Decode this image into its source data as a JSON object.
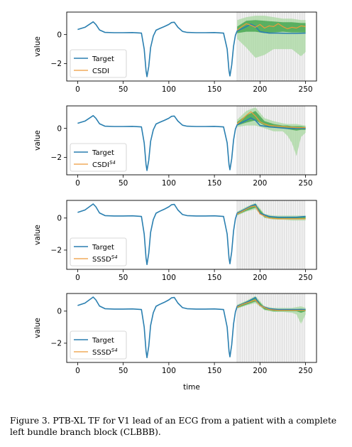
{
  "caption": "Figure 3.  PTB-XL TF for V1 lead of an ECG from a patient with a complete left bundle branch block (CLBBB).",
  "colors": {
    "target": "#2a7fb0",
    "prediction": "#ee9a3a",
    "band_light": "#a8d8a0",
    "band_dark": "#3aa045",
    "masked": "#d9d9d9"
  },
  "chart_data": [
    {
      "type": "line",
      "xlabel": "",
      "ylabel": "value",
      "xlim": [
        -12,
        262
      ],
      "ylim": [
        -3.2,
        1.55
      ],
      "xticks": [
        0,
        50,
        100,
        150,
        200,
        250
      ],
      "yticks": [
        0,
        -2
      ],
      "forecast_start": 175,
      "legend": {
        "placement": "lower-left",
        "entries": [
          {
            "label": "Target",
            "base": "Target",
            "sup": "",
            "series": "target"
          },
          {
            "label": "CSDI",
            "base": "CSDI",
            "sup": "",
            "series": "prediction"
          }
        ]
      },
      "series": [
        {
          "name": "Target",
          "x": [
            0,
            8,
            14,
            17,
            20,
            24,
            30,
            40,
            50,
            60,
            70,
            73,
            75,
            76,
            78,
            80,
            83,
            86,
            90,
            95,
            100,
            103,
            106,
            110,
            115,
            120,
            130,
            140,
            150,
            160,
            164,
            166,
            167,
            169,
            171,
            173,
            175,
            180,
            185,
            190,
            195,
            200,
            210,
            220,
            230,
            240,
            250
          ],
          "y": [
            0.35,
            0.5,
            0.75,
            0.88,
            0.7,
            0.32,
            0.15,
            0.13,
            0.13,
            0.14,
            0.1,
            -1.0,
            -2.5,
            -2.9,
            -2.2,
            -0.9,
            -0.1,
            0.3,
            0.42,
            0.55,
            0.7,
            0.83,
            0.85,
            0.5,
            0.22,
            0.15,
            0.13,
            0.13,
            0.14,
            0.1,
            -1.0,
            -2.5,
            -2.85,
            -2.1,
            -0.8,
            -0.05,
            0.25,
            0.4,
            0.55,
            0.72,
            0.55,
            0.2,
            0.1,
            0.1,
            0.08,
            0.08,
            0.1
          ]
        },
        {
          "name": "CSDI",
          "x": [
            175,
            180,
            185,
            190,
            195,
            200,
            205,
            210,
            215,
            220,
            225,
            230,
            235,
            240,
            245,
            250
          ],
          "y": [
            0.3,
            0.55,
            0.75,
            0.65,
            0.5,
            0.7,
            0.45,
            0.6,
            0.55,
            0.75,
            0.55,
            0.4,
            0.5,
            0.45,
            0.6,
            0.55
          ]
        }
      ],
      "band": {
        "x": [
          175,
          185,
          195,
          205,
          215,
          225,
          235,
          245,
          250
        ],
        "outer_low": [
          -0.3,
          -0.9,
          -1.6,
          -1.4,
          -1.0,
          -1.0,
          -1.0,
          -1.5,
          -1.2
        ],
        "outer_high": [
          1.0,
          1.2,
          1.3,
          1.3,
          1.2,
          1.1,
          1.1,
          1.0,
          1.0
        ],
        "inner_low": [
          0.1,
          0.2,
          0.2,
          0.1,
          0.15,
          0.2,
          0.15,
          0.15,
          0.15
        ],
        "inner_high": [
          0.55,
          0.95,
          1.0,
          0.95,
          0.9,
          0.85,
          0.85,
          0.8,
          0.8
        ]
      }
    },
    {
      "type": "line",
      "xlabel": "",
      "ylabel": "value",
      "xlim": [
        -12,
        262
      ],
      "ylim": [
        -3.2,
        1.55
      ],
      "xticks": [
        0,
        50,
        100,
        150,
        200,
        250
      ],
      "yticks": [
        0,
        -2
      ],
      "forecast_start": 175,
      "legend": {
        "placement": "lower-left",
        "entries": [
          {
            "label": "Target",
            "base": "Target",
            "sup": "",
            "series": "target"
          },
          {
            "label": "CSDI S4",
            "base": "CSDI",
            "sup": "S4",
            "series": "prediction"
          }
        ]
      },
      "series": [
        {
          "name": "Target",
          "x": [
            0,
            8,
            14,
            17,
            20,
            24,
            30,
            40,
            50,
            60,
            70,
            73,
            75,
            76,
            78,
            80,
            83,
            86,
            90,
            95,
            100,
            103,
            106,
            110,
            115,
            120,
            130,
            140,
            150,
            160,
            164,
            166,
            167,
            169,
            171,
            173,
            175,
            180,
            185,
            190,
            195,
            200,
            210,
            220,
            230,
            240,
            250
          ],
          "y": [
            0.35,
            0.5,
            0.75,
            0.88,
            0.7,
            0.32,
            0.15,
            0.13,
            0.13,
            0.14,
            0.1,
            -1.0,
            -2.5,
            -2.9,
            -2.2,
            -0.9,
            -0.1,
            0.3,
            0.42,
            0.55,
            0.7,
            0.83,
            0.85,
            0.5,
            0.22,
            0.15,
            0.13,
            0.13,
            0.14,
            0.1,
            -1.0,
            -2.5,
            -2.85,
            -2.1,
            -0.8,
            -0.05,
            0.25,
            0.4,
            0.55,
            0.72,
            0.55,
            0.2,
            0.1,
            0.05,
            0.0,
            0.0,
            0.0
          ]
        },
        {
          "name": "CSDI S4",
          "x": [
            175,
            180,
            185,
            190,
            195,
            200,
            205,
            210,
            220,
            230,
            240,
            250
          ],
          "y": [
            0.3,
            0.6,
            0.9,
            1.15,
            0.85,
            0.45,
            0.3,
            0.2,
            0.15,
            0.1,
            0.05,
            0.05
          ]
        }
      ],
      "band": {
        "x": [
          175,
          185,
          195,
          205,
          215,
          225,
          230,
          235,
          240,
          245,
          250
        ],
        "outer_low": [
          0.1,
          0.2,
          0.2,
          0.0,
          -0.2,
          -0.2,
          -0.5,
          -1.0,
          -1.9,
          -0.6,
          -0.3
        ],
        "outer_high": [
          0.6,
          1.2,
          1.45,
          0.7,
          0.5,
          0.35,
          0.3,
          0.3,
          0.3,
          0.25,
          0.2
        ],
        "inner_low": [
          0.2,
          0.4,
          0.55,
          0.2,
          0.05,
          0.0,
          -0.05,
          -0.1,
          -0.15,
          -0.1,
          -0.1
        ],
        "inner_high": [
          0.45,
          0.9,
          1.2,
          0.5,
          0.3,
          0.2,
          0.2,
          0.15,
          0.15,
          0.15,
          0.1
        ]
      }
    },
    {
      "type": "line",
      "xlabel": "",
      "ylabel": "value",
      "xlim": [
        -12,
        262
      ],
      "ylim": [
        -3.2,
        1.1
      ],
      "xticks": [
        0,
        50,
        100,
        150,
        200,
        250
      ],
      "yticks": [
        0,
        -2
      ],
      "forecast_start": 175,
      "legend": {
        "placement": "lower-left",
        "entries": [
          {
            "label": "Target",
            "base": "Target",
            "sup": "",
            "series": "target"
          },
          {
            "label": "SSSD S4",
            "base": "SSSD",
            "sup": "S4",
            "series": "prediction"
          }
        ]
      },
      "series": [
        {
          "name": "Target",
          "x": [
            0,
            8,
            14,
            17,
            20,
            24,
            30,
            40,
            50,
            60,
            70,
            73,
            75,
            76,
            78,
            80,
            83,
            86,
            90,
            95,
            100,
            103,
            106,
            110,
            115,
            120,
            130,
            140,
            150,
            160,
            164,
            166,
            167,
            169,
            171,
            173,
            175,
            180,
            185,
            190,
            195,
            200,
            210,
            220,
            230,
            240,
            250
          ],
          "y": [
            0.35,
            0.5,
            0.75,
            0.88,
            0.7,
            0.32,
            0.15,
            0.13,
            0.13,
            0.14,
            0.1,
            -1.0,
            -2.5,
            -2.9,
            -2.2,
            -0.9,
            -0.1,
            0.3,
            0.42,
            0.55,
            0.7,
            0.83,
            0.85,
            0.5,
            0.22,
            0.15,
            0.13,
            0.13,
            0.14,
            0.1,
            -1.0,
            -2.5,
            -2.85,
            -2.1,
            -0.8,
            -0.05,
            0.3,
            0.45,
            0.6,
            0.75,
            0.85,
            0.3,
            0.1,
            0.05,
            0.05,
            0.05,
            0.1
          ]
        },
        {
          "name": "SSSD S4",
          "x": [
            175,
            180,
            185,
            190,
            195,
            200,
            210,
            220,
            230,
            240,
            250
          ],
          "y": [
            0.25,
            0.4,
            0.55,
            0.7,
            0.75,
            0.25,
            0.0,
            -0.05,
            -0.05,
            -0.05,
            -0.05
          ]
        }
      ],
      "band": {
        "x": [
          175,
          185,
          195,
          205,
          215,
          225,
          235,
          245,
          250
        ],
        "outer_low": [
          0.15,
          0.4,
          0.55,
          0.0,
          -0.1,
          -0.1,
          -0.15,
          -0.15,
          -0.15
        ],
        "outer_high": [
          0.4,
          0.7,
          0.95,
          0.25,
          0.15,
          0.15,
          0.15,
          0.15,
          0.15
        ],
        "inner_low": [
          0.2,
          0.45,
          0.65,
          0.05,
          -0.05,
          -0.05,
          -0.05,
          -0.05,
          -0.05
        ],
        "inner_high": [
          0.35,
          0.62,
          0.85,
          0.18,
          0.08,
          0.08,
          0.08,
          0.08,
          0.08
        ]
      }
    },
    {
      "type": "line",
      "xlabel": "time",
      "ylabel": "value",
      "xlim": [
        -12,
        262
      ],
      "ylim": [
        -3.2,
        1.1
      ],
      "xticks": [
        0,
        50,
        100,
        150,
        200,
        250
      ],
      "yticks": [
        0,
        -2
      ],
      "forecast_start": 175,
      "legend": {
        "placement": "lower-left",
        "entries": [
          {
            "label": "Target",
            "base": "Target",
            "sup": "",
            "series": "target"
          },
          {
            "label": "SSSD S4",
            "base": "SSSD",
            "sup": "S4",
            "series": "prediction"
          }
        ]
      },
      "series": [
        {
          "name": "Target",
          "x": [
            0,
            8,
            14,
            17,
            20,
            24,
            30,
            40,
            50,
            60,
            70,
            73,
            75,
            76,
            78,
            80,
            83,
            86,
            90,
            95,
            100,
            103,
            106,
            110,
            115,
            120,
            130,
            140,
            150,
            160,
            164,
            166,
            167,
            169,
            171,
            173,
            175,
            180,
            185,
            190,
            195,
            200,
            210,
            220,
            230,
            240,
            250
          ],
          "y": [
            0.35,
            0.5,
            0.75,
            0.88,
            0.7,
            0.32,
            0.15,
            0.13,
            0.13,
            0.14,
            0.1,
            -1.0,
            -2.5,
            -2.9,
            -2.2,
            -0.9,
            -0.1,
            0.3,
            0.42,
            0.55,
            0.7,
            0.83,
            0.85,
            0.5,
            0.22,
            0.15,
            0.13,
            0.13,
            0.14,
            0.1,
            -1.0,
            -2.5,
            -2.85,
            -2.1,
            -0.8,
            -0.05,
            0.3,
            0.42,
            0.55,
            0.7,
            0.85,
            0.35,
            0.15,
            0.1,
            0.1,
            0.1,
            0.1
          ]
        },
        {
          "name": "SSSD S4",
          "x": [
            175,
            180,
            185,
            190,
            195,
            200,
            210,
            220,
            230,
            240,
            250
          ],
          "y": [
            0.25,
            0.4,
            0.5,
            0.6,
            0.7,
            0.35,
            0.1,
            0.05,
            0.05,
            0.05,
            0.05
          ]
        }
      ],
      "band": {
        "x": [
          175,
          185,
          195,
          205,
          215,
          225,
          235,
          240,
          245,
          250
        ],
        "outer_low": [
          0.15,
          0.35,
          0.5,
          0.05,
          -0.05,
          -0.05,
          -0.1,
          -0.2,
          -0.8,
          -0.2
        ],
        "outer_high": [
          0.4,
          0.65,
          0.95,
          0.3,
          0.2,
          0.2,
          0.2,
          0.25,
          0.3,
          0.2
        ],
        "inner_low": [
          0.2,
          0.4,
          0.6,
          0.1,
          0.0,
          0.0,
          0.0,
          0.0,
          -0.1,
          0.0
        ],
        "inner_high": [
          0.35,
          0.6,
          0.85,
          0.22,
          0.12,
          0.12,
          0.12,
          0.12,
          0.15,
          0.12
        ]
      }
    }
  ]
}
